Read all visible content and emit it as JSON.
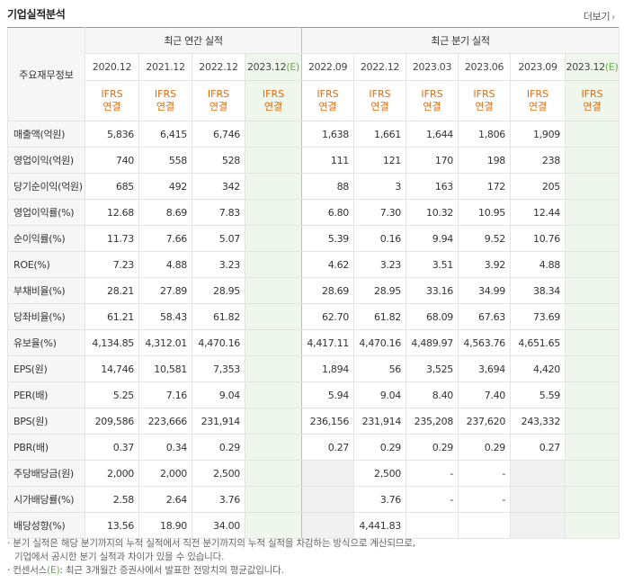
{
  "header": {
    "title": "기업실적분석",
    "more_label": "더보기"
  },
  "table": {
    "corner_label": "주요재무정보",
    "annual_group": "최근 연간 실적",
    "quarter_group": "최근 분기 실적",
    "annual_periods": [
      "2020.12",
      "2021.12",
      "2022.12",
      "2023.12(E)"
    ],
    "quarter_periods": [
      "2022.09",
      "2022.12",
      "2023.03",
      "2023.06",
      "2023.09",
      "2023.12(E)"
    ],
    "standard_line1": "IFRS",
    "standard_line2": "연결",
    "rows": [
      {
        "label": "매출액(억원)",
        "annual": [
          "5,836",
          "6,415",
          "6,746",
          ""
        ],
        "quarter": [
          "1,638",
          "1,661",
          "1,644",
          "1,806",
          "1,909",
          ""
        ]
      },
      {
        "label": "영업이익(억원)",
        "annual": [
          "740",
          "558",
          "528",
          ""
        ],
        "quarter": [
          "111",
          "121",
          "170",
          "198",
          "238",
          ""
        ]
      },
      {
        "label": "당기순이익(억원)",
        "annual": [
          "685",
          "492",
          "342",
          ""
        ],
        "quarter": [
          "88",
          "3",
          "163",
          "172",
          "205",
          ""
        ]
      },
      {
        "label": "영업이익률(%)",
        "annual": [
          "12.68",
          "8.69",
          "7.83",
          ""
        ],
        "quarter": [
          "6.80",
          "7.30",
          "10.32",
          "10.95",
          "12.44",
          ""
        ]
      },
      {
        "label": "순이익률(%)",
        "annual": [
          "11.73",
          "7.66",
          "5.07",
          ""
        ],
        "quarter": [
          "5.39",
          "0.16",
          "9.94",
          "9.52",
          "10.76",
          ""
        ]
      },
      {
        "label": "ROE(%)",
        "annual": [
          "7.23",
          "4.88",
          "3.23",
          ""
        ],
        "quarter": [
          "4.62",
          "3.23",
          "3.51",
          "3.92",
          "4.88",
          ""
        ]
      },
      {
        "label": "부채비율(%)",
        "annual": [
          "28.21",
          "27.89",
          "28.95",
          ""
        ],
        "quarter": [
          "28.69",
          "28.95",
          "33.16",
          "34.99",
          "38.34",
          ""
        ]
      },
      {
        "label": "당좌비율(%)",
        "annual": [
          "61.21",
          "58.43",
          "61.82",
          ""
        ],
        "quarter": [
          "62.70",
          "61.82",
          "68.09",
          "67.63",
          "73.69",
          ""
        ]
      },
      {
        "label": "유보율(%)",
        "annual": [
          "4,134.85",
          "4,312.01",
          "4,470.16",
          ""
        ],
        "quarter": [
          "4,417.11",
          "4,470.16",
          "4,489.97",
          "4,563.76",
          "4,651.65",
          ""
        ]
      },
      {
        "label": "EPS(원)",
        "annual": [
          "14,746",
          "10,581",
          "7,353",
          ""
        ],
        "quarter": [
          "1,894",
          "56",
          "3,525",
          "3,694",
          "4,420",
          ""
        ]
      },
      {
        "label": "PER(배)",
        "annual": [
          "5.25",
          "7.16",
          "9.04",
          ""
        ],
        "quarter": [
          "5.94",
          "9.04",
          "8.40",
          "7.40",
          "5.59",
          ""
        ]
      },
      {
        "label": "BPS(원)",
        "annual": [
          "209,586",
          "223,666",
          "231,914",
          ""
        ],
        "quarter": [
          "236,156",
          "231,914",
          "235,208",
          "237,620",
          "243,332",
          ""
        ]
      },
      {
        "label": "PBR(배)",
        "annual": [
          "0.37",
          "0.34",
          "0.29",
          ""
        ],
        "quarter": [
          "0.27",
          "0.29",
          "0.29",
          "0.29",
          "0.27",
          ""
        ]
      },
      {
        "label": "주당배당금(원)",
        "annual": [
          "2,000",
          "2,000",
          "2,500",
          ""
        ],
        "quarter": [
          "",
          "2,500",
          "-",
          "-",
          "",
          ""
        ]
      },
      {
        "label": "시가배당률(%)",
        "annual": [
          "2.58",
          "2.64",
          "3.76",
          ""
        ],
        "quarter": [
          "",
          "3.76",
          "-",
          "-",
          "",
          ""
        ]
      },
      {
        "label": "배당성향(%)",
        "annual": [
          "13.56",
          "18.90",
          "34.00",
          ""
        ],
        "quarter": [
          "",
          "4,441.83",
          "",
          "",
          "",
          ""
        ]
      }
    ]
  },
  "notes": {
    "line1": "분기 실적은 해당 분기까지의 누적 실적에서 직전 분기까지의 누적 실적을 차감하는 방식으로 계산되므로,",
    "line2": "기업에서 공시한 분기 실적과 차이가 있을 수 있습니다.",
    "line3_prefix": "컨센서스",
    "line3_e": "(E)",
    "line3_rest": ": 최근 3개월간 증권사에서 발표한 전망치의 평균값입니다."
  },
  "colors": {
    "accent": "#e26b0a",
    "estimate_bg": "#eff7ec",
    "estimate_text": "#6aa84f",
    "header_bg": "#f6f6f6"
  }
}
